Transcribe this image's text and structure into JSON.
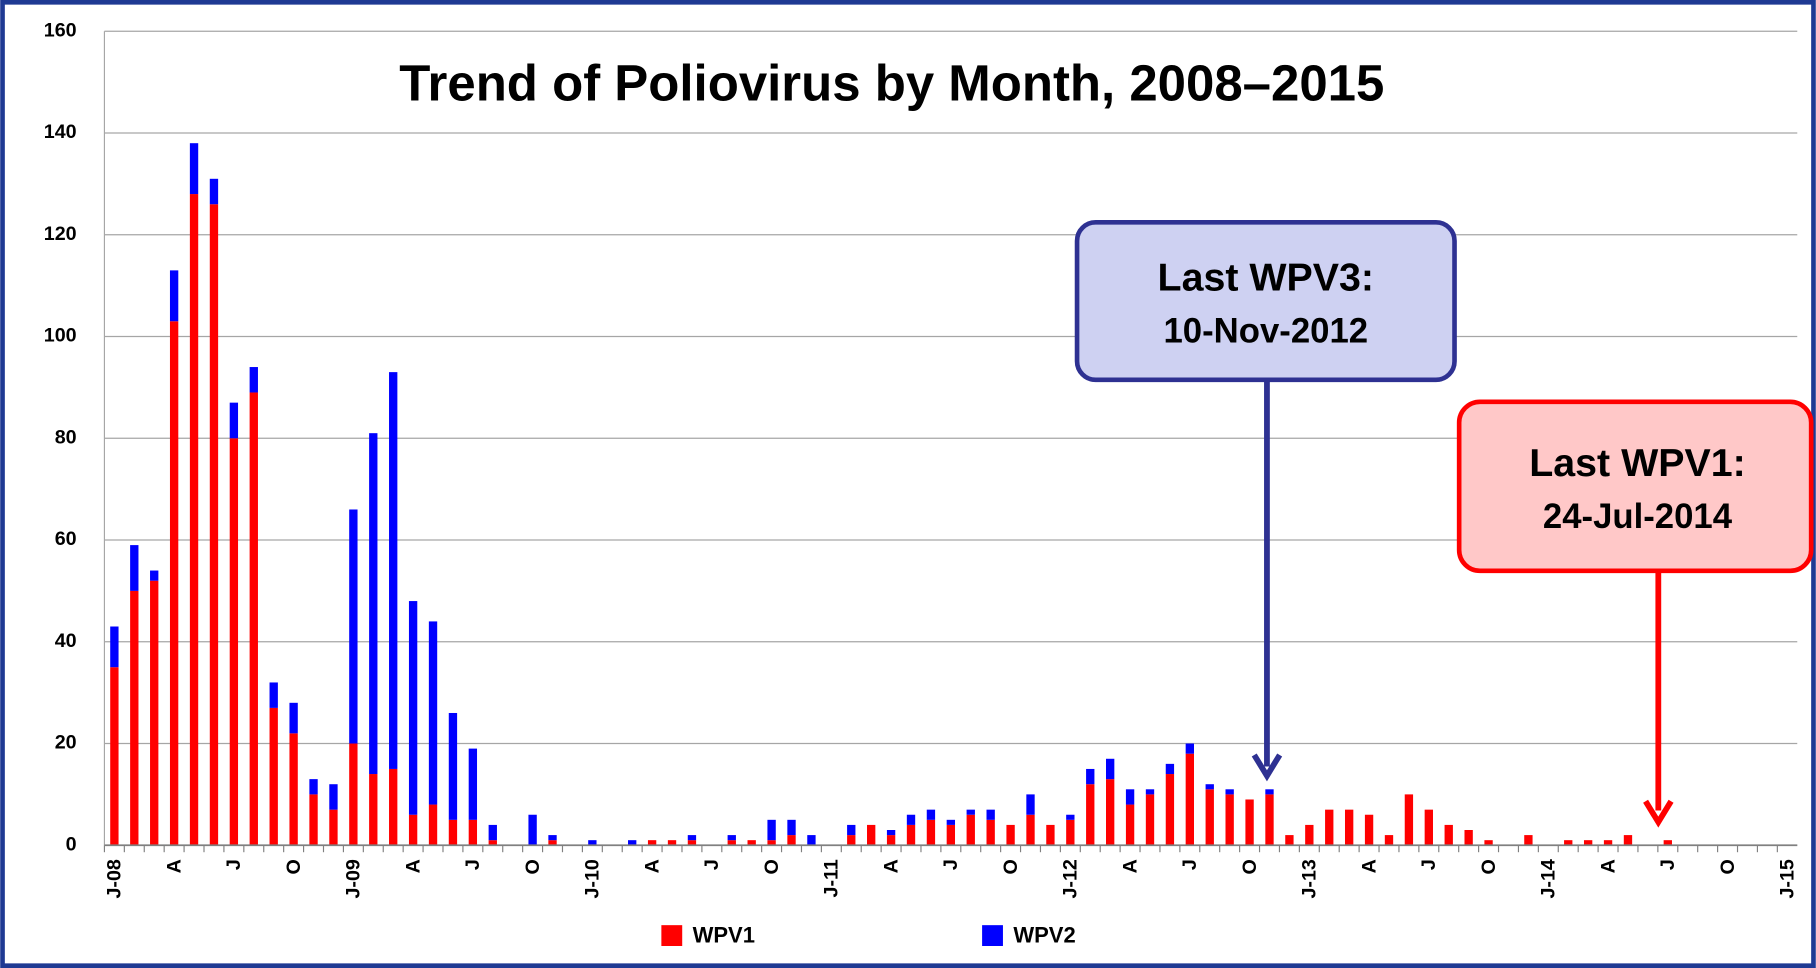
{
  "chart_data": {
    "type": "stacked_bar",
    "title": "Trend of Poliovirus by Month, 2008–2015",
    "categories": [
      "J-08",
      null,
      null,
      "A",
      null,
      null,
      "J",
      null,
      null,
      "O",
      null,
      null,
      "J-09",
      null,
      null,
      "A",
      null,
      null,
      "J",
      null,
      null,
      "O",
      null,
      null,
      "J-10",
      null,
      null,
      "A",
      null,
      null,
      "J",
      null,
      null,
      "O",
      null,
      null,
      "J-11",
      null,
      null,
      "A",
      null,
      null,
      "J",
      null,
      null,
      "O",
      null,
      null,
      "J-12",
      null,
      null,
      "A",
      null,
      null,
      "J",
      null,
      null,
      "O",
      null,
      null,
      "J-13",
      null,
      null,
      "A",
      null,
      null,
      "J",
      null,
      null,
      "O",
      null,
      null,
      "J-14",
      null,
      null,
      "A",
      null,
      null,
      "J",
      null,
      null,
      "O",
      null,
      null,
      "J-15"
    ],
    "series": [
      {
        "name": "WPV1",
        "color": "#ff0000",
        "values": [
          35,
          50,
          52,
          103,
          128,
          126,
          80,
          89,
          27,
          22,
          10,
          7,
          20,
          14,
          15,
          6,
          8,
          5,
          5,
          1,
          0,
          0,
          1,
          0,
          0,
          0,
          0,
          1,
          1,
          1,
          0,
          1,
          1,
          1,
          2,
          0,
          0,
          2,
          4,
          2,
          4,
          5,
          4,
          6,
          5,
          4,
          6,
          4,
          5,
          12,
          13,
          8,
          10,
          14,
          18,
          11,
          10,
          9,
          10,
          2,
          4,
          7,
          7,
          6,
          2,
          10,
          7,
          4,
          3,
          1,
          0,
          2,
          0,
          1,
          1,
          1,
          2,
          0,
          1,
          0,
          0,
          0,
          0,
          0,
          0
        ]
      },
      {
        "name": "WPV2",
        "color": "#0000ff",
        "values": [
          8,
          9,
          2,
          10,
          10,
          5,
          7,
          5,
          5,
          6,
          3,
          5,
          46,
          67,
          78,
          42,
          36,
          21,
          14,
          3,
          0,
          6,
          1,
          0,
          1,
          0,
          1,
          0,
          0,
          1,
          0,
          1,
          0,
          4,
          3,
          2,
          0,
          2,
          0,
          1,
          2,
          2,
          1,
          1,
          2,
          0,
          4,
          0,
          1,
          3,
          4,
          3,
          1,
          2,
          2,
          1,
          1,
          0,
          1,
          0,
          0,
          0,
          0,
          0,
          0,
          0,
          0,
          0,
          0,
          0,
          0,
          0,
          0,
          0,
          0,
          0,
          0,
          0,
          0,
          0,
          0,
          0,
          0,
          0,
          0
        ]
      }
    ],
    "ylim": [
      0,
      160
    ],
    "yticks": [
      0,
      20,
      40,
      60,
      80,
      100,
      120,
      140,
      160
    ],
    "grid": true,
    "annotations": [
      {
        "lines": [
          "Last WPV3:",
          "10-Nov-2012"
        ]
      },
      {
        "lines": [
          "Last WPV1:",
          "24-Jul-2014"
        ]
      }
    ]
  }
}
